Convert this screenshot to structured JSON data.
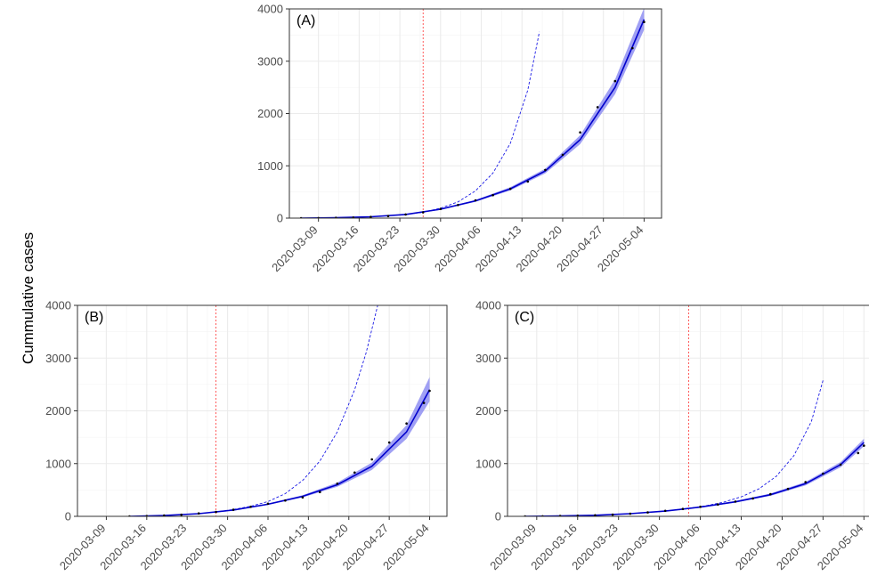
{
  "figure": {
    "ylabel": "Cummulative cases"
  },
  "colors": {
    "ribbon": "#8080f0",
    "fit_line": "#0000cc",
    "projection": "#1a1ae6",
    "vline": "#ff3333",
    "observed": "#000000"
  },
  "chart_data": [
    {
      "type": "line",
      "panel_label": "(A)",
      "ylabel": "Cummulative cases",
      "ylim": [
        0,
        4000
      ],
      "yticks": [
        0,
        1000,
        2000,
        3000,
        4000
      ],
      "xlim": [
        "2020-03-04",
        "2020-05-07"
      ],
      "xticks": [
        "2020-03-09",
        "2020-03-16",
        "2020-03-23",
        "2020-03-30",
        "2020-04-06",
        "2020-04-13",
        "2020-04-20",
        "2020-04-27",
        "2020-05-04"
      ],
      "grid": true,
      "vline": "2020-03-27",
      "observed": {
        "x": [
          "2020-03-06",
          "2020-03-09",
          "2020-03-12",
          "2020-03-15",
          "2020-03-18",
          "2020-03-21",
          "2020-03-24",
          "2020-03-27",
          "2020-03-30",
          "2020-04-02",
          "2020-04-05",
          "2020-04-08",
          "2020-04-11",
          "2020-04-14",
          "2020-04-17",
          "2020-04-20",
          "2020-04-23",
          "2020-04-26",
          "2020-04-29",
          "2020-05-02",
          "2020-05-04"
        ],
        "y": [
          0,
          2,
          5,
          10,
          22,
          40,
          70,
          110,
          175,
          250,
          340,
          440,
          560,
          700,
          920,
          1210,
          1640,
          2120,
          2620,
          3250,
          3750
        ]
      },
      "fit": {
        "x": [
          "2020-03-06",
          "2020-03-12",
          "2020-03-18",
          "2020-03-24",
          "2020-03-30",
          "2020-04-05",
          "2020-04-11",
          "2020-04-17",
          "2020-04-23",
          "2020-04-29",
          "2020-05-04"
        ],
        "y": [
          0,
          8,
          25,
          70,
          170,
          330,
          560,
          900,
          1500,
          2500,
          3800
        ],
        "lower": [
          0,
          7,
          22,
          64,
          158,
          312,
          530,
          855,
          1415,
          2370,
          3600
        ],
        "upper": [
          0,
          9,
          28,
          76,
          182,
          348,
          590,
          945,
          1585,
          2650,
          4020
        ]
      },
      "projection": {
        "x": [
          "2020-03-24",
          "2020-03-27",
          "2020-03-30",
          "2020-04-02",
          "2020-04-05",
          "2020-04-08",
          "2020-04-11",
          "2020-04-14",
          "2020-04-16"
        ],
        "y": [
          70,
          110,
          190,
          310,
          520,
          860,
          1430,
          2450,
          3560
        ]
      }
    },
    {
      "type": "line",
      "panel_label": "(B)",
      "ylabel": "Cummulative cases",
      "ylim": [
        0,
        4000
      ],
      "yticks": [
        0,
        1000,
        2000,
        3000,
        4000
      ],
      "xlim": [
        "2020-03-04",
        "2020-05-07"
      ],
      "xticks": [
        "2020-03-09",
        "2020-03-16",
        "2020-03-23",
        "2020-03-30",
        "2020-04-06",
        "2020-04-13",
        "2020-04-20",
        "2020-04-27",
        "2020-05-04"
      ],
      "grid": true,
      "vline": "2020-03-28",
      "observed": {
        "x": [
          "2020-03-13",
          "2020-03-16",
          "2020-03-19",
          "2020-03-22",
          "2020-03-25",
          "2020-03-28",
          "2020-03-31",
          "2020-04-03",
          "2020-04-06",
          "2020-04-09",
          "2020-04-12",
          "2020-04-15",
          "2020-04-18",
          "2020-04-21",
          "2020-04-24",
          "2020-04-27",
          "2020-04-30",
          "2020-05-03",
          "2020-05-04"
        ],
        "y": [
          0,
          5,
          15,
          30,
          55,
          85,
          125,
          180,
          240,
          300,
          360,
          460,
          620,
          830,
          1080,
          1400,
          1760,
          2150,
          2380
        ]
      },
      "fit": {
        "x": [
          "2020-03-13",
          "2020-03-19",
          "2020-03-25",
          "2020-03-31",
          "2020-04-06",
          "2020-04-12",
          "2020-04-18",
          "2020-04-24",
          "2020-04-30",
          "2020-05-04"
        ],
        "y": [
          0,
          15,
          50,
          120,
          230,
          380,
          600,
          950,
          1600,
          2400
        ],
        "lower": [
          0,
          13,
          46,
          112,
          217,
          358,
          560,
          880,
          1470,
          2180
        ],
        "upper": [
          0,
          17,
          54,
          128,
          243,
          402,
          640,
          1020,
          1730,
          2640
        ]
      },
      "projection": {
        "x": [
          "2020-03-28",
          "2020-03-31",
          "2020-04-03",
          "2020-04-06",
          "2020-04-09",
          "2020-04-12",
          "2020-04-15",
          "2020-04-18",
          "2020-04-21",
          "2020-04-23",
          "2020-04-25"
        ],
        "y": [
          85,
          130,
          190,
          280,
          430,
          680,
          1050,
          1600,
          2400,
          3100,
          4000
        ]
      }
    },
    {
      "type": "line",
      "panel_label": "(C)",
      "ylabel": "Cummulative cases",
      "ylim": [
        0,
        4000
      ],
      "yticks": [
        0,
        1000,
        2000,
        3000,
        4000
      ],
      "xlim": [
        "2020-03-04",
        "2020-05-07"
      ],
      "xticks": [
        "2020-03-09",
        "2020-03-16",
        "2020-03-23",
        "2020-03-30",
        "2020-04-06",
        "2020-04-13",
        "2020-04-20",
        "2020-04-27",
        "2020-05-04"
      ],
      "grid": true,
      "vline": "2020-04-04",
      "observed": {
        "x": [
          "2020-03-07",
          "2020-03-10",
          "2020-03-13",
          "2020-03-16",
          "2020-03-19",
          "2020-03-22",
          "2020-03-25",
          "2020-03-28",
          "2020-03-31",
          "2020-04-03",
          "2020-04-06",
          "2020-04-09",
          "2020-04-12",
          "2020-04-15",
          "2020-04-18",
          "2020-04-21",
          "2020-04-24",
          "2020-04-27",
          "2020-04-30",
          "2020-05-03",
          "2020-05-04"
        ],
        "y": [
          0,
          2,
          6,
          12,
          20,
          32,
          50,
          75,
          105,
          140,
          180,
          225,
          280,
          340,
          420,
          520,
          650,
          810,
          980,
          1200,
          1340
        ]
      },
      "fit": {
        "x": [
          "2020-03-07",
          "2020-03-13",
          "2020-03-19",
          "2020-03-25",
          "2020-03-31",
          "2020-04-06",
          "2020-04-12",
          "2020-04-18",
          "2020-04-24",
          "2020-04-30",
          "2020-05-04"
        ],
        "y": [
          0,
          6,
          20,
          50,
          100,
          175,
          275,
          410,
          620,
          980,
          1400
        ],
        "lower": [
          0,
          5,
          18,
          46,
          94,
          165,
          260,
          388,
          588,
          930,
          1330
        ],
        "upper": [
          0,
          7,
          22,
          54,
          106,
          185,
          290,
          432,
          652,
          1030,
          1470
        ]
      },
      "projection": {
        "x": [
          "2020-04-04",
          "2020-04-07",
          "2020-04-10",
          "2020-04-13",
          "2020-04-16",
          "2020-04-19",
          "2020-04-22",
          "2020-04-25",
          "2020-04-27"
        ],
        "y": [
          150,
          200,
          270,
          370,
          520,
          760,
          1150,
          1800,
          2580
        ]
      }
    }
  ]
}
